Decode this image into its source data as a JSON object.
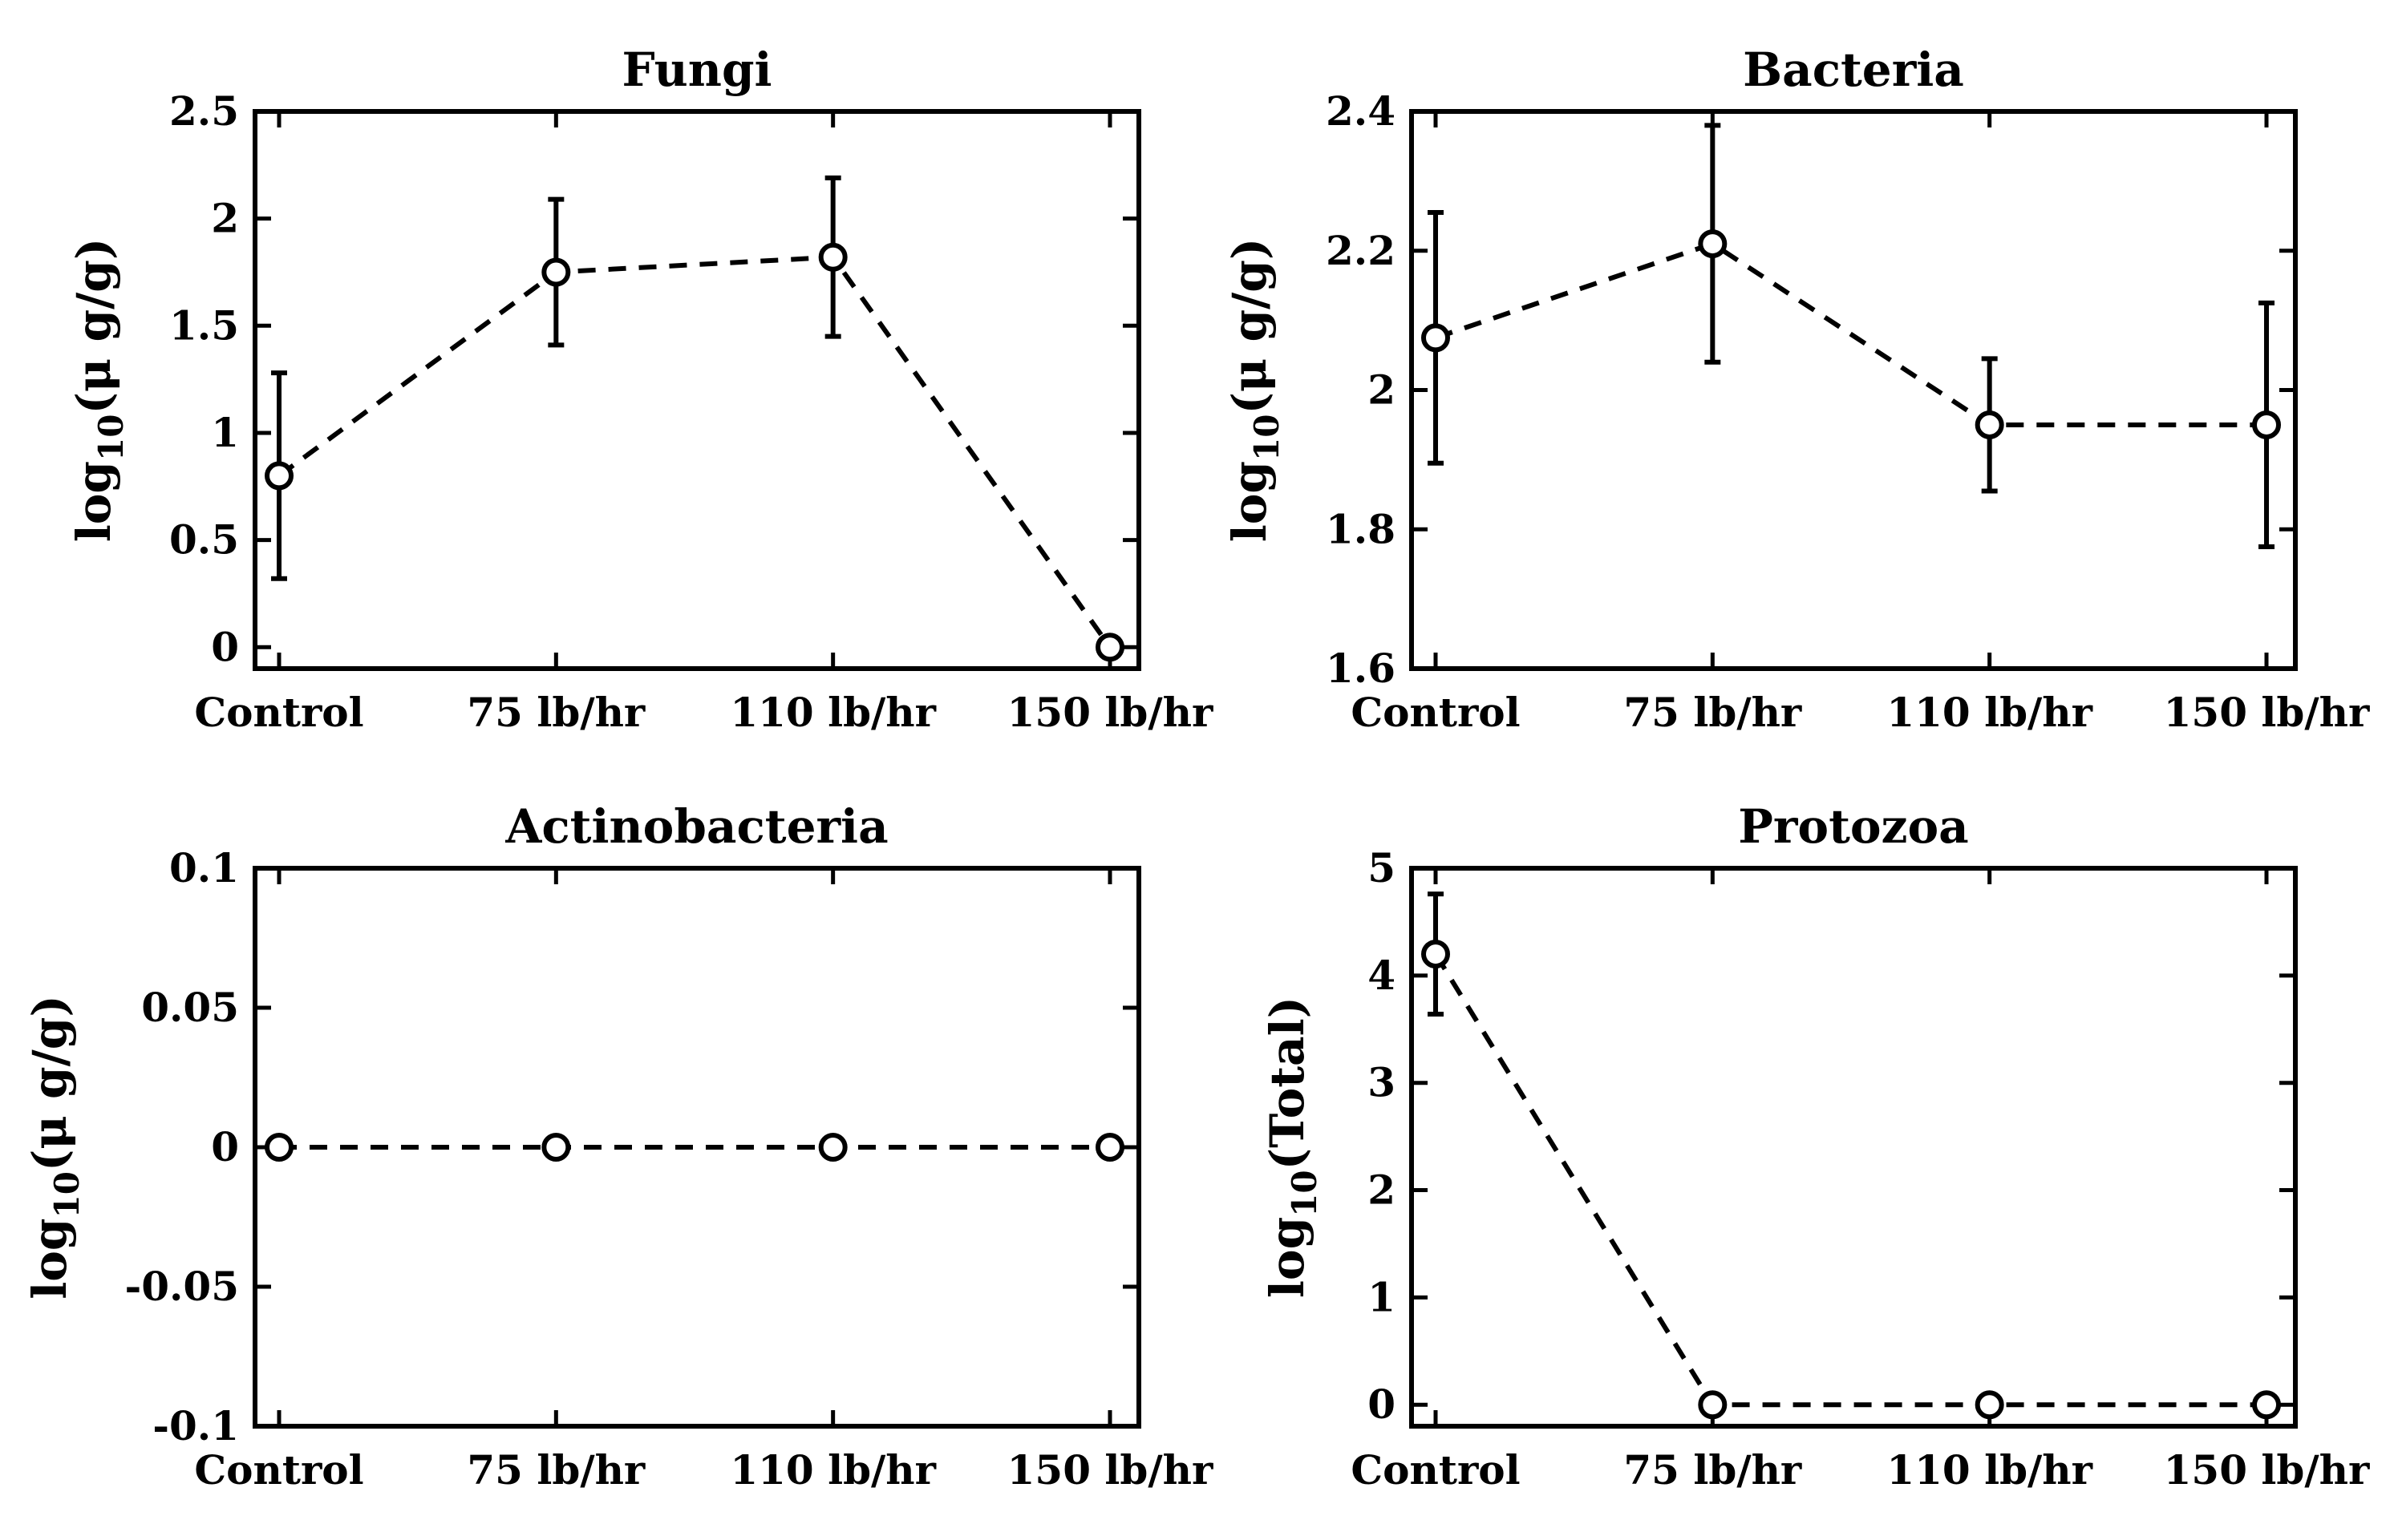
{
  "chart_data": [
    {
      "type": "line",
      "title": "Fungi",
      "xlabel": "",
      "ylabel": {
        "prefix": "log",
        "subscript": "10",
        "suffix": "(μ g/g)"
      },
      "categories": [
        "Control",
        "75 lb/hr",
        "110 lb/hr",
        "150 lb/hr"
      ],
      "series": [
        {
          "name": "Fungi",
          "values": [
            0.8,
            1.75,
            1.82,
            0.0
          ],
          "error": [
            0.48,
            0.34,
            0.37,
            0.0
          ]
        }
      ],
      "ylim": [
        -0.1,
        2.5
      ],
      "yticks": [
        0,
        0.5,
        1,
        1.5,
        2,
        2.5
      ],
      "ytick_labels": [
        "0",
        "0.5",
        "1",
        "1.5",
        "2",
        "2.5"
      ],
      "line_style": "dashed",
      "marker": "open-circle",
      "grid": false
    },
    {
      "type": "line",
      "title": "Bacteria",
      "xlabel": "",
      "ylabel": {
        "prefix": "log",
        "subscript": "10",
        "suffix": "(μ g/g)"
      },
      "categories": [
        "Control",
        "75 lb/hr",
        "110 lb/hr",
        "150 lb/hr"
      ],
      "series": [
        {
          "name": "Bacteria",
          "values": [
            2.075,
            2.21,
            1.95,
            1.95
          ],
          "error": [
            0.18,
            0.17,
            0.095,
            0.175
          ]
        }
      ],
      "ylim": [
        1.6,
        2.4
      ],
      "yticks": [
        1.6,
        1.8,
        2.0,
        2.2,
        2.4
      ],
      "ytick_labels": [
        "1.6",
        "1.8",
        "2",
        "2.2",
        "2.4"
      ],
      "line_style": "dashed",
      "marker": "open-circle",
      "grid": false
    },
    {
      "type": "line",
      "title": "Actinobacteria",
      "xlabel": "",
      "ylabel": {
        "prefix": "log",
        "subscript": "10",
        "suffix": "(μ g/g)"
      },
      "categories": [
        "Control",
        "75 lb/hr",
        "110 lb/hr",
        "150 lb/hr"
      ],
      "series": [
        {
          "name": "Actinobacteria",
          "values": [
            0,
            0,
            0,
            0
          ],
          "error": [
            0,
            0,
            0,
            0
          ]
        }
      ],
      "ylim": [
        -0.1,
        0.1
      ],
      "yticks": [
        -0.1,
        -0.05,
        0,
        0.05,
        0.1
      ],
      "ytick_labels": [
        "-0.1",
        "-0.05",
        "0",
        "0.05",
        "0.1"
      ],
      "line_style": "dashed",
      "marker": "open-circle",
      "grid": false
    },
    {
      "type": "line",
      "title": "Protozoa",
      "xlabel": "",
      "ylabel": {
        "prefix": "log",
        "subscript": "10",
        "suffix": "(Total)"
      },
      "categories": [
        "Control",
        "75 lb/hr",
        "110 lb/hr",
        "150 lb/hr"
      ],
      "series": [
        {
          "name": "Protozoa",
          "values": [
            4.2,
            0,
            0,
            0
          ],
          "error": [
            0.56,
            0,
            0,
            0
          ]
        }
      ],
      "ylim": [
        -0.2,
        5
      ],
      "yticks": [
        0,
        1,
        2,
        3,
        4,
        5
      ],
      "ytick_labels": [
        "0",
        "1",
        "2",
        "3",
        "4",
        "5"
      ],
      "line_style": "dashed",
      "marker": "open-circle",
      "grid": false
    }
  ]
}
